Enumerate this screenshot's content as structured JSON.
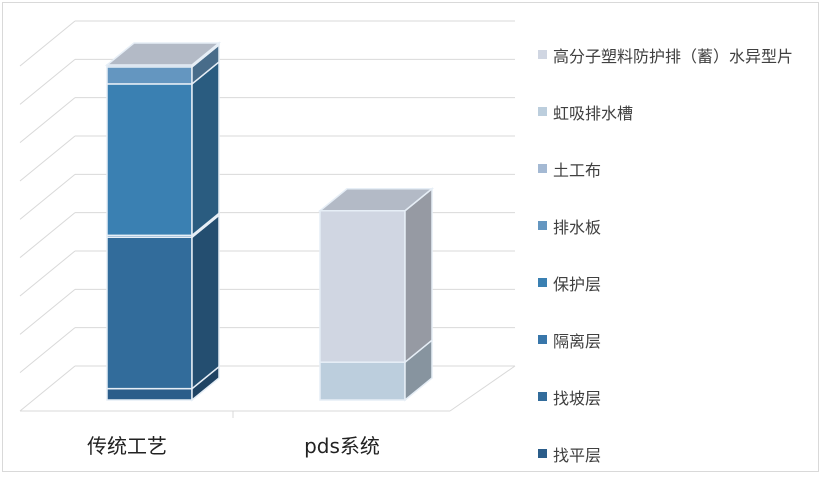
{
  "chart_data": {
    "type": "bar",
    "stacked": true,
    "three_d": true,
    "title": "",
    "xlabel": "",
    "ylabel": "",
    "ylim": [
      0,
      9
    ],
    "grid": true,
    "tick_labels_y": false,
    "legend_position": "right",
    "categories": [
      "传统工艺",
      "pds系统"
    ],
    "series": [
      {
        "name": "找平层",
        "values": [
          0.3,
          0
        ],
        "color": "#2b5d8a"
      },
      {
        "name": "找坡层",
        "values": [
          4.0,
          0
        ],
        "color": "#326c9b"
      },
      {
        "name": "隔离层",
        "values": [
          0.05,
          0
        ],
        "color": "#3876aa"
      },
      {
        "name": "保护层",
        "values": [
          4.0,
          0
        ],
        "color": "#3a80b2"
      },
      {
        "name": "排水板",
        "values": [
          0.45,
          0
        ],
        "color": "#6496c0"
      },
      {
        "name": "土工布",
        "values": [
          0.05,
          0
        ],
        "color": "#a4b9d3"
      },
      {
        "name": "虹吸排水槽",
        "values": [
          0,
          1.0
        ],
        "color": "#bccedd"
      },
      {
        "name": "高分子塑料防护排（蓄）水异型片",
        "values": [
          0,
          4.0
        ],
        "color": "#d0d6e2"
      }
    ]
  }
}
